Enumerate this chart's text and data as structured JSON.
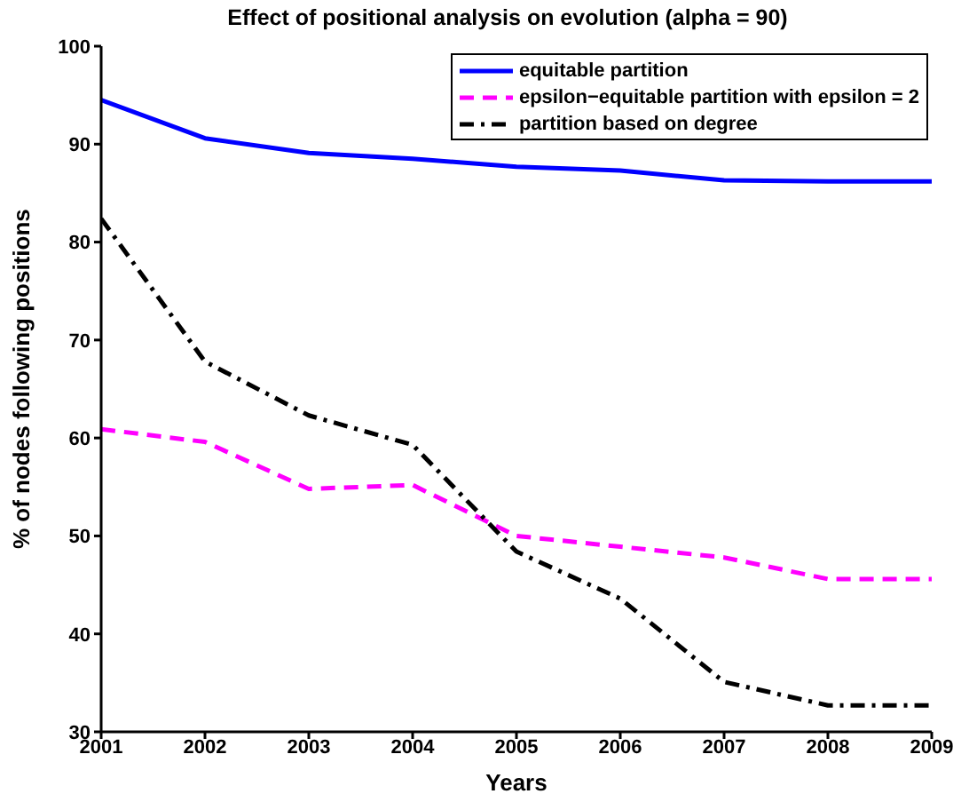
{
  "chart_data": {
    "type": "line",
    "title": "Effect of positional analysis on evolution (alpha = 90)",
    "xlabel": "Years",
    "ylabel": "% of nodes following positions",
    "x": [
      2001,
      2002,
      2003,
      2004,
      2005,
      2006,
      2007,
      2008,
      2009
    ],
    "series": [
      {
        "name": "equitable partition",
        "color": "#0000ff",
        "line_style": "solid",
        "values": [
          94.5,
          90.6,
          89.1,
          88.5,
          87.7,
          87.3,
          86.3,
          86.2,
          86.2
        ]
      },
      {
        "name": "epsilon−equitable partition with epsilon = 2",
        "color": "#ff00ff",
        "line_style": "dashed",
        "values": [
          60.9,
          59.6,
          54.8,
          55.2,
          50.0,
          48.9,
          47.8,
          45.6,
          45.6
        ]
      },
      {
        "name": "partition based on degree",
        "color": "#000000",
        "line_style": "dashdot",
        "values": [
          82.4,
          67.8,
          62.3,
          59.3,
          48.4,
          43.6,
          35.1,
          32.7,
          32.7
        ]
      }
    ],
    "xlim": [
      2001,
      2009
    ],
    "xticks": [
      2001,
      2002,
      2003,
      2004,
      2005,
      2006,
      2007,
      2008,
      2009
    ],
    "ylim": [
      30,
      100
    ],
    "yticks": [
      30,
      40,
      50,
      60,
      70,
      80,
      90,
      100
    ],
    "grid": false,
    "legend": "top right",
    "marker": "none"
  }
}
